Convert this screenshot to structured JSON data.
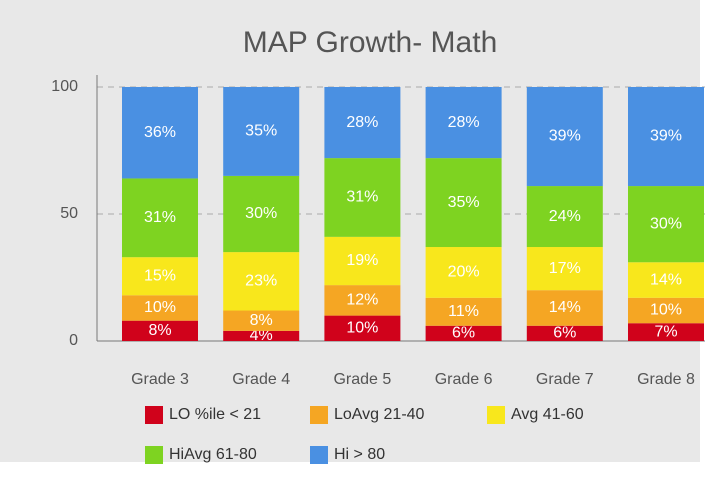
{
  "chart_data": {
    "type": "bar",
    "stacked": true,
    "title": "MAP Growth- Math",
    "categories": [
      "Grade 3",
      "Grade 4",
      "Grade 5",
      "Grade 6",
      "Grade 7",
      "Grade 8"
    ],
    "series": [
      {
        "name": "LO %ile < 21",
        "color": "#d0021b",
        "values": [
          8,
          4,
          10,
          6,
          6,
          7
        ],
        "value_labels": [
          "8%",
          "4%",
          "10%",
          "6%",
          "6%",
          "7%"
        ]
      },
      {
        "name": "LoAvg 21-40",
        "color": "#f5a623",
        "values": [
          10,
          8,
          12,
          11,
          14,
          10
        ],
        "value_labels": [
          "10%",
          "8%",
          "12%",
          "11%",
          "14%",
          "10%"
        ]
      },
      {
        "name": "Avg 41-60",
        "color": "#f8e71c",
        "values": [
          15,
          23,
          19,
          20,
          17,
          14
        ],
        "value_labels": [
          "15%",
          "23%",
          "19%",
          "20%",
          "17%",
          "14%"
        ]
      },
      {
        "name": "HiAvg 61-80",
        "color": "#7ed321",
        "values": [
          31,
          30,
          31,
          35,
          24,
          30
        ],
        "value_labels": [
          "31%",
          "30%",
          "31%",
          "35%",
          "24%",
          "30%"
        ]
      },
      {
        "name": "Hi > 80",
        "color": "#4a90e2",
        "values": [
          36,
          35,
          28,
          28,
          39,
          39
        ],
        "value_labels": [
          "36%",
          "35%",
          "28%",
          "28%",
          "39%",
          "39%"
        ]
      }
    ],
    "ylim": [
      0,
      100
    ],
    "yticks": [
      0,
      50,
      100
    ],
    "grid": true
  }
}
